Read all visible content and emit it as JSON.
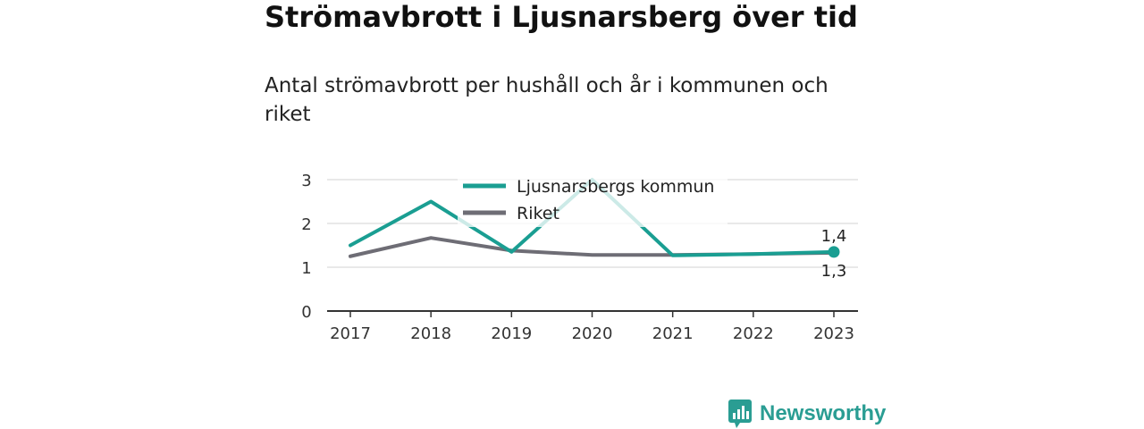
{
  "title": "Strömavbrott i Ljusnarsberg över tid",
  "subtitle": "Antal strömavbrott per hushåll och år i kommunen och riket",
  "brand": {
    "name": "Newsworthy",
    "icon": "newsworthy-logo-icon",
    "color": "#2a9d93"
  },
  "chart_data": {
    "type": "line",
    "x": [
      "2017",
      "2018",
      "2019",
      "2020",
      "2021",
      "2022",
      "2023"
    ],
    "ylim": [
      0,
      3
    ],
    "yticks": [
      "0",
      "1",
      "2",
      "3"
    ],
    "grid": true,
    "legend_position": "top-center",
    "series": [
      {
        "name": "Ljusnarsbergs kommun",
        "color": "#1a9e92",
        "values": [
          1.5,
          2.5,
          1.35,
          3.0,
          1.27,
          1.3,
          1.35
        ]
      },
      {
        "name": "Riket",
        "color": "#6e6d75",
        "values": [
          1.25,
          1.67,
          1.38,
          1.28,
          1.28,
          1.3,
          1.33
        ]
      }
    ],
    "end_labels": {
      "series_0": "1,4",
      "series_1": "1,3"
    }
  }
}
